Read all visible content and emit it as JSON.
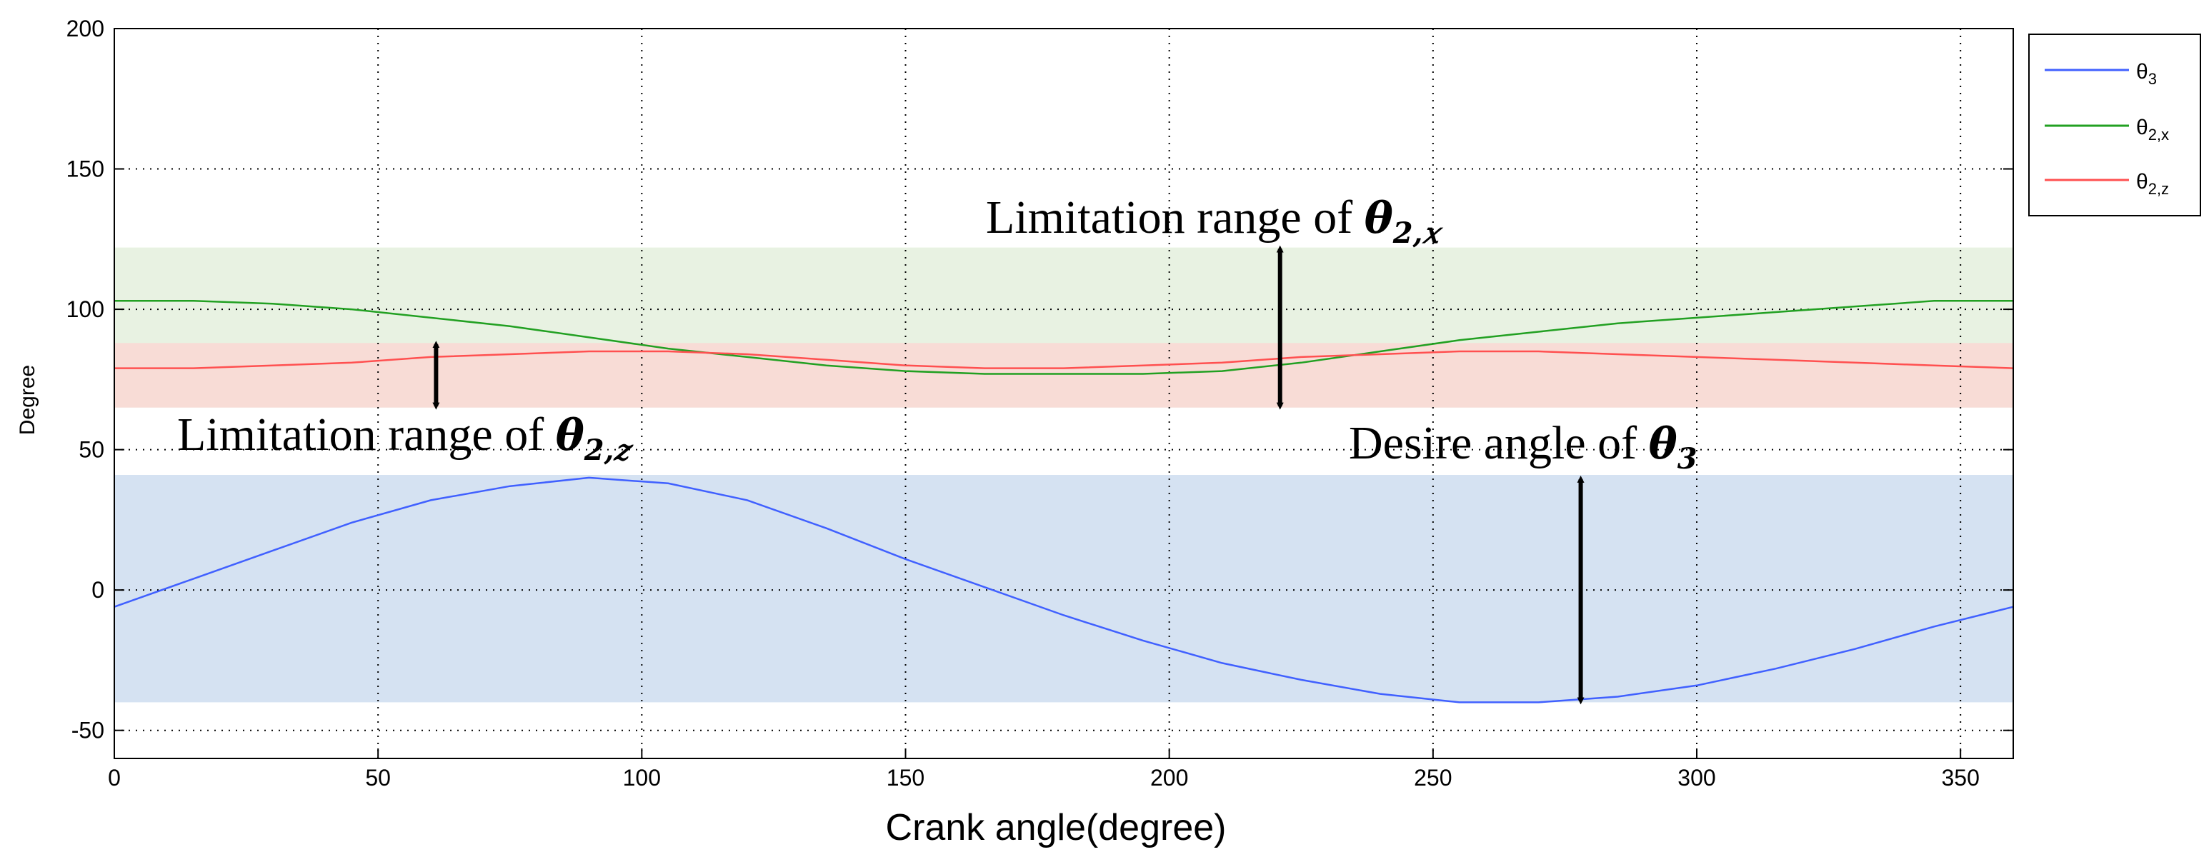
{
  "chart_data": {
    "type": "line",
    "title": "",
    "xlabel": "Crank angle(degree)",
    "ylabel": "Degree",
    "xlim": [
      0,
      360
    ],
    "ylim": [
      -60,
      200
    ],
    "xticks": [
      0,
      50,
      100,
      150,
      200,
      250,
      300,
      350
    ],
    "yticks": [
      -50,
      0,
      50,
      100,
      150,
      200
    ],
    "grid": true,
    "legend_position": "outside-top-right",
    "series": [
      {
        "name": "θ3",
        "symbol": "θ",
        "sub": "3",
        "color": "#4060ff",
        "x": [
          0,
          15,
          30,
          45,
          60,
          75,
          90,
          105,
          120,
          135,
          150,
          165,
          180,
          195,
          210,
          225,
          240,
          255,
          270,
          285,
          300,
          315,
          330,
          345,
          360
        ],
        "y": [
          -6,
          4,
          14,
          24,
          32,
          37,
          40,
          38,
          32,
          22,
          11,
          1,
          -9,
          -18,
          -26,
          -32,
          -37,
          -40,
          -40,
          -38,
          -34,
          -28,
          -21,
          -13,
          -6
        ]
      },
      {
        "name": "θ2,x",
        "symbol": "θ",
        "sub": "2,x",
        "color": "#22a022",
        "x": [
          0,
          15,
          30,
          45,
          60,
          75,
          90,
          105,
          120,
          135,
          150,
          165,
          180,
          195,
          210,
          225,
          240,
          255,
          270,
          285,
          300,
          315,
          330,
          345,
          360
        ],
        "y": [
          103,
          103,
          102,
          100,
          97,
          94,
          90,
          86,
          83,
          80,
          78,
          77,
          77,
          77,
          78,
          81,
          85,
          89,
          92,
          95,
          97,
          99,
          101,
          103,
          103
        ]
      },
      {
        "name": "θ2,z",
        "symbol": "θ",
        "sub": "2,z",
        "color": "#ff5050",
        "x": [
          0,
          15,
          30,
          45,
          60,
          75,
          90,
          105,
          120,
          135,
          150,
          165,
          180,
          195,
          210,
          225,
          240,
          255,
          270,
          285,
          300,
          315,
          330,
          345,
          360
        ],
        "y": [
          79,
          79,
          80,
          81,
          83,
          84,
          85,
          85,
          84,
          82,
          80,
          79,
          79,
          80,
          81,
          83,
          84,
          85,
          85,
          84,
          83,
          82,
          81,
          80,
          79
        ]
      }
    ],
    "bands": [
      {
        "name": "θ2,x range",
        "from": 65,
        "to": 122,
        "color": "#e8f2e2"
      },
      {
        "name": "θ2,z range",
        "from": 65,
        "to": 88,
        "color": "#f8dcd6"
      },
      {
        "name": "θ3 range",
        "from": -40,
        "to": 41,
        "color": "#d5e2f2"
      }
    ],
    "annotations": [
      {
        "text": "Limitation range of ",
        "symbol": "θ",
        "sub": "2,𝑥",
        "arrow_x": 221,
        "arrow_from": 65,
        "arrow_to": 122
      },
      {
        "text": "Limitation range of ",
        "symbol": "θ",
        "sub": "2,𝑧",
        "arrow_x": 61,
        "arrow_from": 65,
        "arrow_to": 88
      },
      {
        "text": "Desire angle of ",
        "symbol": "θ",
        "sub": "3",
        "arrow_x": 278,
        "arrow_from": -40,
        "arrow_to": 40
      }
    ]
  }
}
